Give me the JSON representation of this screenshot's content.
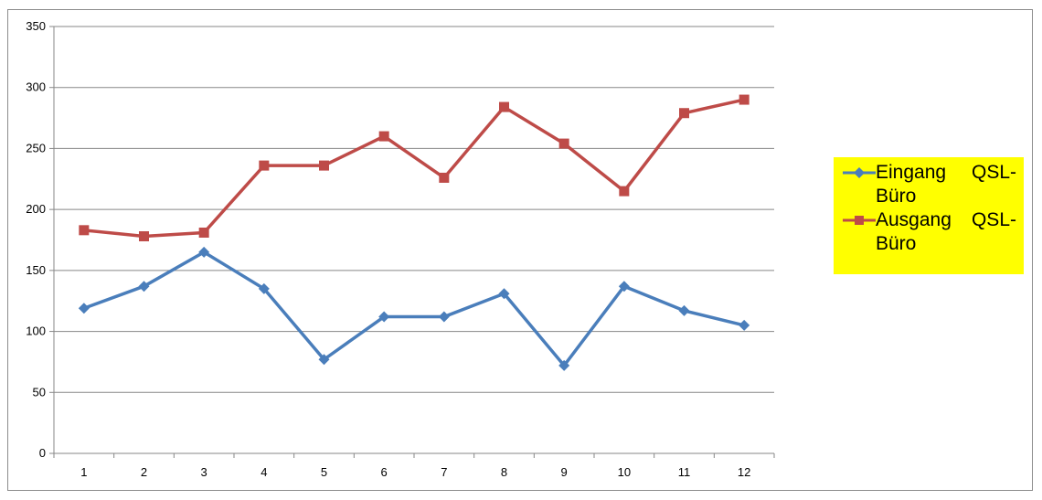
{
  "chart_data": {
    "type": "line",
    "categories": [
      "1",
      "2",
      "3",
      "4",
      "5",
      "6",
      "7",
      "8",
      "9",
      "10",
      "11",
      "12"
    ],
    "series": [
      {
        "name": "Eingang QSL-Büro",
        "name_line1": "Eingang  QSL-",
        "name_line2": "Büro",
        "color": "#4a7ebb",
        "marker": "diamond",
        "values": [
          119,
          137,
          165,
          135,
          77,
          112,
          112,
          131,
          72,
          137,
          117,
          105
        ]
      },
      {
        "name": "Ausgang QSL-Büro",
        "name_line1": "Ausgang   QSL-",
        "name_line2": "Büro",
        "color": "#be4b48",
        "marker": "square",
        "values": [
          183,
          178,
          181,
          236,
          236,
          260,
          226,
          284,
          254,
          215,
          279,
          290
        ]
      }
    ],
    "ylim": [
      0,
      350
    ],
    "yticks": [
      "0",
      "50",
      "100",
      "150",
      "200",
      "250",
      "300",
      "350"
    ],
    "grid": true,
    "legend_position": "right",
    "legend_background": "#ffff00",
    "title": "",
    "xlabel": "",
    "ylabel": ""
  }
}
